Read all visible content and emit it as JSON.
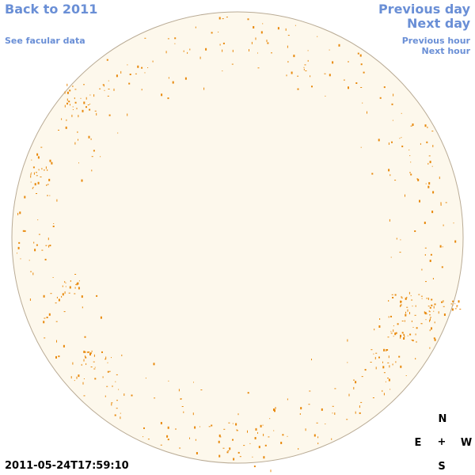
{
  "nav": {
    "back_label": "Back to 2011",
    "facular_label": "See facular data",
    "prev_day_label": "Previous day",
    "next_day_label": "Next day",
    "prev_hour_label": "Previous hour",
    "next_hour_label": "Next hour"
  },
  "timestamp": "2011-05-24T17:59:10",
  "compass": {
    "north": "N",
    "south": "S",
    "east": "E",
    "west": "W",
    "center": "+"
  },
  "colors": {
    "link": "#6a8fd6",
    "disk_fill": "#fdf8ec",
    "disk_stroke": "#b9ab95",
    "facula": "#e8890c"
  }
}
